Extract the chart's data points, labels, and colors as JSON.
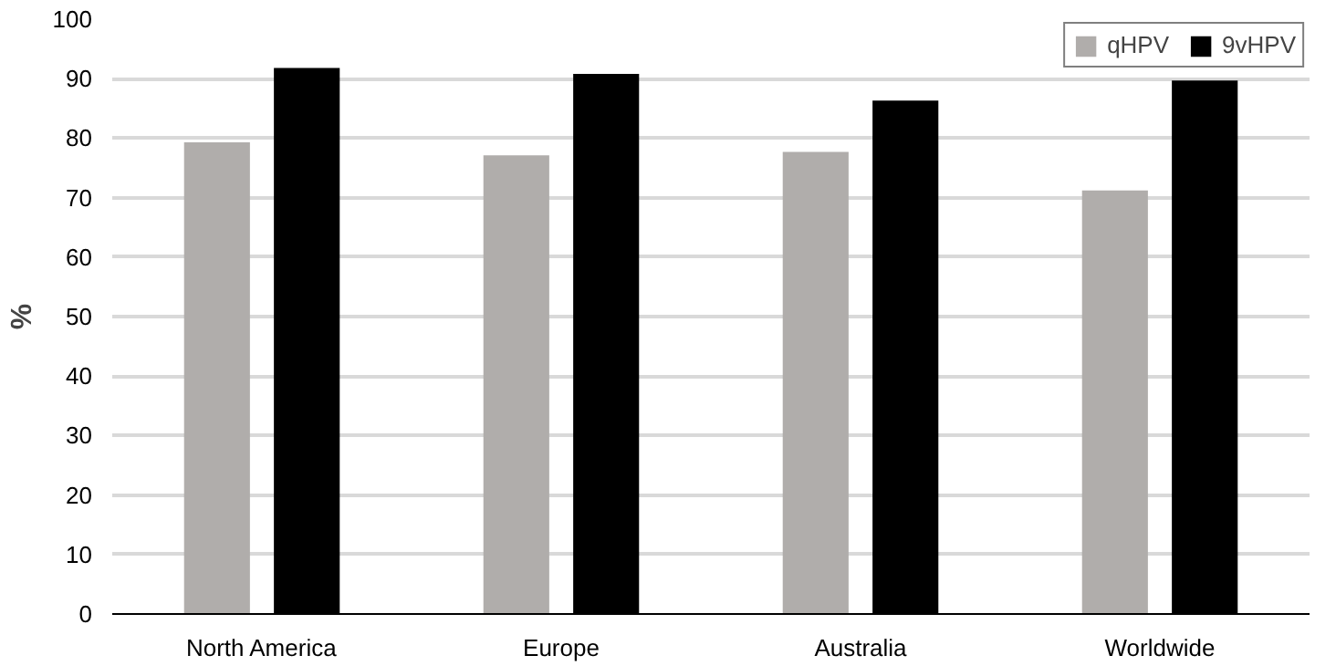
{
  "chart_data": {
    "type": "bar",
    "ylabel": "%",
    "categories": [
      "North America",
      "Europe",
      "Australia",
      "Worldwide"
    ],
    "series": [
      {
        "name": "qHPV",
        "color": "#b0adab",
        "values": [
          79.3,
          77.1,
          77.7,
          71.2
        ]
      },
      {
        "name": "9vHPV",
        "color": "#000000",
        "values": [
          91.8,
          90.8,
          86.3,
          89.7
        ]
      }
    ],
    "ylim": [
      0,
      100
    ],
    "yticks": [
      0,
      10,
      20,
      30,
      40,
      50,
      60,
      70,
      80,
      90,
      100
    ],
    "grid": "y",
    "legend": "top right"
  }
}
